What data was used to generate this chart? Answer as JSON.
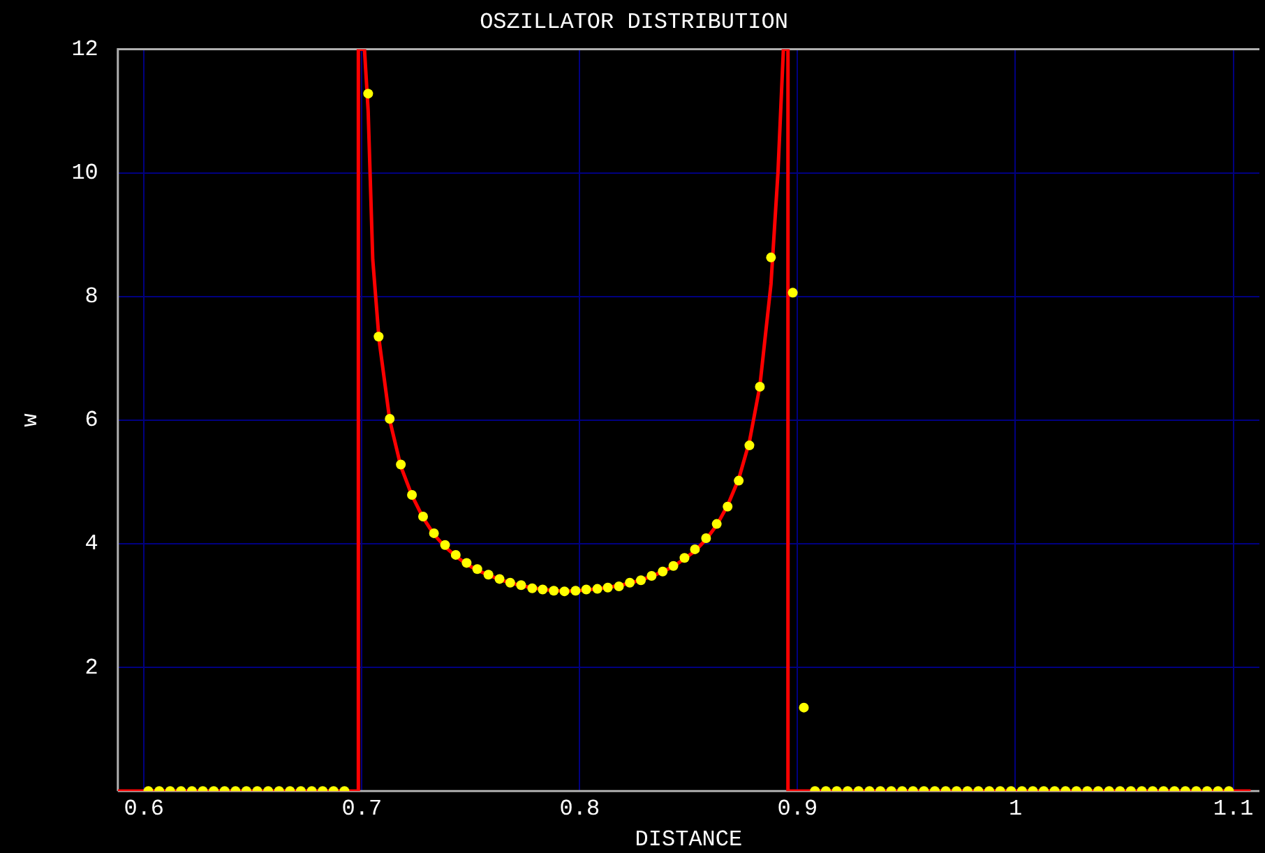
{
  "chart_data": {
    "type": "scatter",
    "title": "OSZILLATOR DISTRIBUTION",
    "xlabel": "DISTANCE",
    "ylabel": "w",
    "xlim": [
      0.588,
      1.112
    ],
    "ylim": [
      0,
      12
    ],
    "xticks": [
      0.6,
      0.7,
      0.8,
      0.9,
      1,
      1.1
    ],
    "yticks": [
      2,
      4,
      6,
      8,
      10,
      12
    ],
    "grid": true,
    "series": [
      {
        "type": "line",
        "color": "#ff0000",
        "marker": "none",
        "line_style": "solid",
        "x": [
          0.588,
          0.6984,
          0.6984,
          0.7012,
          0.7029,
          0.705,
          0.7079,
          0.7128,
          0.7179,
          0.723,
          0.7281,
          0.7331,
          0.7382,
          0.7431,
          0.7481,
          0.753,
          0.7632,
          0.7731,
          0.783,
          0.793,
          0.803,
          0.8129,
          0.823,
          0.833,
          0.843,
          0.8529,
          0.858,
          0.8629,
          0.8679,
          0.873,
          0.8779,
          0.8827,
          0.8878,
          0.891,
          0.8935,
          0.8956,
          0.8956,
          1.108
        ],
        "values": [
          0,
          0,
          12,
          12,
          11.0,
          8.6,
          7.3,
          6.0,
          5.25,
          4.78,
          4.42,
          4.15,
          3.95,
          3.8,
          3.67,
          3.57,
          3.42,
          3.32,
          3.26,
          3.23,
          3.25,
          3.29,
          3.36,
          3.47,
          3.63,
          3.88,
          4.07,
          4.3,
          4.62,
          5.05,
          5.65,
          6.55,
          8.2,
          10.0,
          12,
          12,
          0,
          0
        ]
      },
      {
        "color": "#ffff00",
        "marker": "circle",
        "x": [
          0.602,
          0.607,
          0.612,
          0.617,
          0.622,
          0.627,
          0.632,
          0.637,
          0.642,
          0.647,
          0.652,
          0.657,
          0.662,
          0.667,
          0.672,
          0.677,
          0.682,
          0.687,
          0.692,
          0.7029,
          0.7077,
          0.7128,
          0.7179,
          0.723,
          0.7281,
          0.7331,
          0.7382,
          0.7431,
          0.7481,
          0.753,
          0.7581,
          0.7632,
          0.7681,
          0.7731,
          0.7782,
          0.783,
          0.7881,
          0.793,
          0.7981,
          0.803,
          0.8081,
          0.8129,
          0.818,
          0.823,
          0.8281,
          0.833,
          0.8381,
          0.843,
          0.8481,
          0.8529,
          0.858,
          0.8629,
          0.8679,
          0.873,
          0.8779,
          0.8827,
          0.8878,
          0.8978,
          0.9029,
          0.908,
          0.913,
          0.918,
          0.923,
          0.928,
          0.933,
          0.938,
          0.943,
          0.948,
          0.953,
          0.958,
          0.963,
          0.968,
          0.973,
          0.978,
          0.983,
          0.988,
          0.993,
          0.998,
          1.003,
          1.008,
          1.013,
          1.018,
          1.023,
          1.028,
          1.033,
          1.038,
          1.043,
          1.048,
          1.053,
          1.058,
          1.063,
          1.068,
          1.073,
          1.078,
          1.083,
          1.088,
          1.093,
          1.098
        ],
        "values": [
          0,
          0,
          0,
          0,
          0,
          0,
          0,
          0,
          0,
          0,
          0,
          0,
          0,
          0,
          0,
          0,
          0,
          0,
          0,
          11.28,
          7.35,
          6.02,
          5.28,
          4.79,
          4.44,
          4.17,
          3.98,
          3.82,
          3.69,
          3.59,
          3.5,
          3.43,
          3.37,
          3.33,
          3.28,
          3.26,
          3.24,
          3.23,
          3.24,
          3.26,
          3.27,
          3.29,
          3.31,
          3.37,
          3.41,
          3.48,
          3.55,
          3.64,
          3.77,
          3.91,
          4.09,
          4.32,
          4.6,
          5.02,
          5.59,
          6.54,
          8.63,
          8.06,
          1.35,
          0,
          0,
          0,
          0,
          0,
          0,
          0,
          0,
          0,
          0,
          0,
          0,
          0,
          0,
          0,
          0,
          0,
          0,
          0,
          0,
          0,
          0,
          0,
          0,
          0,
          0,
          0,
          0,
          0,
          0,
          0,
          0,
          0,
          0,
          0,
          0,
          0,
          0,
          0
        ]
      }
    ]
  }
}
